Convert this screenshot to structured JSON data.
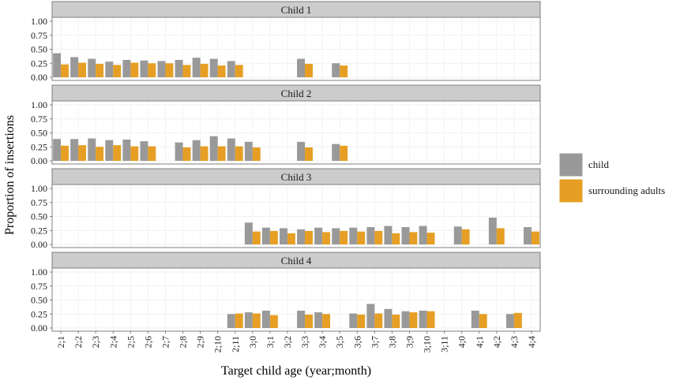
{
  "chart_data": {
    "type": "bar",
    "subtype": "grouped-faceted",
    "ylabel": "Proportion of insertions",
    "xlabel": "Target child age (year;month)",
    "ylim": [
      0,
      1
    ],
    "yticks": [
      "0.00",
      "0.25",
      "0.50",
      "0.75",
      "1.00"
    ],
    "categories": [
      "2;1",
      "2;2",
      "2;3",
      "2;4",
      "2;5",
      "2;6",
      "2;7",
      "2;8",
      "2;9",
      "2;10",
      "2;11",
      "3;0",
      "3;1",
      "3;2",
      "3;3",
      "3;4",
      "3;5",
      "3;6",
      "3;7",
      "3;8",
      "3;9",
      "3;10",
      "3;11",
      "4;0",
      "4;1",
      "4;2",
      "4;3",
      "4;4"
    ],
    "legend": {
      "position": "right",
      "items": [
        {
          "label": "child",
          "color": "#999999"
        },
        {
          "label": "surrounding adults",
          "color": "#E69F24"
        }
      ]
    },
    "panels": [
      {
        "title": "Child 1",
        "series": [
          {
            "name": "child",
            "values": [
              0.43,
              0.36,
              0.33,
              0.28,
              0.31,
              0.3,
              0.29,
              0.31,
              0.35,
              0.33,
              0.29,
              null,
              null,
              null,
              0.33,
              null,
              0.25,
              null,
              null,
              null,
              null,
              null,
              null,
              null,
              null,
              null,
              null,
              null
            ]
          },
          {
            "name": "surrounding adults",
            "values": [
              0.23,
              0.26,
              0.24,
              0.22,
              0.26,
              0.25,
              0.25,
              0.22,
              0.24,
              0.21,
              0.22,
              null,
              null,
              null,
              0.24,
              null,
              0.21,
              null,
              null,
              null,
              null,
              null,
              null,
              null,
              null,
              null,
              null,
              null
            ]
          }
        ]
      },
      {
        "title": "Child 2",
        "series": [
          {
            "name": "child",
            "values": [
              0.39,
              0.39,
              0.4,
              0.37,
              0.38,
              0.35,
              null,
              0.33,
              0.37,
              0.44,
              0.4,
              0.34,
              null,
              null,
              0.34,
              null,
              0.3,
              null,
              null,
              null,
              null,
              null,
              null,
              null,
              null,
              null,
              null,
              null
            ]
          },
          {
            "name": "surrounding adults",
            "values": [
              0.27,
              0.28,
              0.25,
              0.28,
              0.26,
              0.26,
              null,
              0.24,
              0.26,
              0.26,
              0.26,
              0.24,
              null,
              null,
              0.24,
              null,
              0.27,
              null,
              null,
              null,
              null,
              null,
              null,
              null,
              null,
              null,
              null,
              null
            ]
          }
        ]
      },
      {
        "title": "Child 3",
        "series": [
          {
            "name": "child",
            "values": [
              null,
              null,
              null,
              null,
              null,
              null,
              null,
              null,
              null,
              null,
              null,
              0.39,
              0.3,
              0.29,
              0.27,
              0.3,
              0.29,
              0.3,
              0.31,
              0.33,
              0.31,
              0.33,
              null,
              0.32,
              null,
              0.48,
              null,
              0.31
            ]
          },
          {
            "name": "surrounding adults",
            "values": [
              null,
              null,
              null,
              null,
              null,
              null,
              null,
              null,
              null,
              null,
              null,
              0.23,
              0.24,
              0.2,
              0.24,
              0.22,
              0.24,
              0.23,
              0.24,
              0.2,
              0.22,
              0.21,
              null,
              0.27,
              null,
              0.29,
              null,
              0.23
            ]
          }
        ]
      },
      {
        "title": "Child 4",
        "series": [
          {
            "name": "child",
            "values": [
              null,
              null,
              null,
              null,
              null,
              null,
              null,
              null,
              null,
              null,
              0.25,
              0.28,
              0.31,
              null,
              0.31,
              0.28,
              null,
              0.26,
              0.43,
              0.34,
              0.3,
              0.31,
              null,
              null,
              0.31,
              null,
              0.25,
              null
            ]
          },
          {
            "name": "surrounding adults",
            "values": [
              null,
              null,
              null,
              null,
              null,
              null,
              null,
              null,
              null,
              null,
              0.26,
              0.26,
              0.23,
              null,
              0.24,
              0.25,
              null,
              0.24,
              0.26,
              0.24,
              0.28,
              0.3,
              null,
              null,
              0.25,
              null,
              0.27,
              null
            ]
          }
        ]
      }
    ]
  }
}
